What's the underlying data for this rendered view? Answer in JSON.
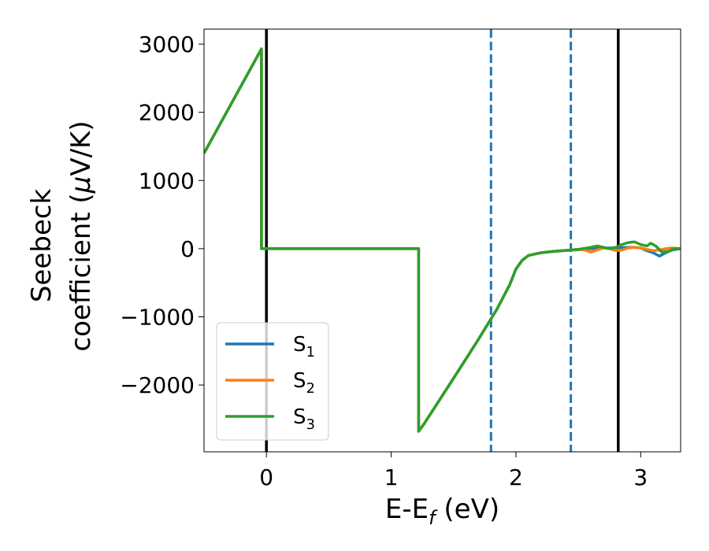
{
  "chart_data": {
    "type": "line",
    "xlabel_main": "E-E",
    "xlabel_sub": "f",
    "xlabel_unit": " (eV)",
    "ylabel_line1": "Seebeck",
    "ylabel_line2_text": "coefficient  (",
    "ylabel_mu": "μ",
    "ylabel_unit": "V/K)",
    "xlim": [
      -0.5,
      3.32
    ],
    "ylim": [
      -2980,
      3220
    ],
    "xticks": [
      {
        "value": 0,
        "label": "0"
      },
      {
        "value": 1,
        "label": "1"
      },
      {
        "value": 2,
        "label": "2"
      },
      {
        "value": 3,
        "label": "3"
      }
    ],
    "yticks": [
      {
        "value": 3000,
        "label": "3000"
      },
      {
        "value": 2000,
        "label": "2000"
      },
      {
        "value": 1000,
        "label": "1000"
      },
      {
        "value": 0,
        "label": "0"
      },
      {
        "value": -1000,
        "label": "−1000"
      },
      {
        "value": -2000,
        "label": "−2000"
      }
    ],
    "vlines": [
      {
        "x": 0.0,
        "style": "solid",
        "color": "#000000"
      },
      {
        "x": 2.82,
        "style": "solid",
        "color": "#000000"
      },
      {
        "x": 1.8,
        "style": "dashed",
        "color": "#1f77b4"
      },
      {
        "x": 2.44,
        "style": "dashed",
        "color": "#1f77b4"
      }
    ],
    "legend_position": "lower-left",
    "series": [
      {
        "name": "S",
        "sub": "1",
        "color": "#1f77b4",
        "x": [
          -0.5,
          -0.04,
          -0.04,
          1.22,
          1.22,
          1.26,
          1.5,
          1.7,
          1.85,
          1.95,
          2.0,
          2.05,
          2.1,
          2.2,
          2.3,
          2.4,
          2.5,
          2.6,
          2.7,
          2.8,
          2.85,
          2.9,
          2.95,
          3.0,
          3.05,
          3.1,
          3.15,
          3.2,
          3.25,
          3.32
        ],
        "y": [
          1400,
          2930,
          0,
          0,
          -2680,
          -2580,
          -1900,
          -1330,
          -880,
          -530,
          -300,
          -170,
          -100,
          -60,
          -40,
          -25,
          -15,
          0,
          10,
          10,
          15,
          20,
          20,
          10,
          -30,
          -60,
          -110,
          -60,
          -20,
          0
        ]
      },
      {
        "name": "S",
        "sub": "2",
        "color": "#ff7f0e",
        "x": [
          -0.5,
          -0.04,
          -0.04,
          1.22,
          1.22,
          1.26,
          1.5,
          1.7,
          1.85,
          1.95,
          2.0,
          2.05,
          2.1,
          2.2,
          2.3,
          2.4,
          2.5,
          2.55,
          2.6,
          2.65,
          2.7,
          2.75,
          2.8,
          2.85,
          2.9,
          2.95,
          3.0,
          3.05,
          3.1,
          3.15,
          3.2,
          3.25,
          3.32
        ],
        "y": [
          1400,
          2930,
          0,
          0,
          -2680,
          -2580,
          -1900,
          -1330,
          -880,
          -530,
          -300,
          -170,
          -100,
          -60,
          -40,
          -25,
          -10,
          -20,
          -50,
          -20,
          10,
          0,
          -30,
          -20,
          10,
          20,
          10,
          -10,
          -30,
          -20,
          0,
          10,
          0
        ]
      },
      {
        "name": "S",
        "sub": "3",
        "color": "#2ca02c",
        "x": [
          -0.5,
          -0.04,
          -0.04,
          1.22,
          1.22,
          1.26,
          1.5,
          1.7,
          1.85,
          1.95,
          2.0,
          2.05,
          2.1,
          2.2,
          2.3,
          2.4,
          2.5,
          2.6,
          2.65,
          2.7,
          2.75,
          2.8,
          2.85,
          2.9,
          2.95,
          3.0,
          3.05,
          3.08,
          3.12,
          3.17,
          3.22,
          3.27,
          3.32
        ],
        "y": [
          1400,
          2930,
          0,
          0,
          -2680,
          -2580,
          -1900,
          -1330,
          -880,
          -530,
          -300,
          -170,
          -100,
          -60,
          -40,
          -25,
          -10,
          20,
          40,
          20,
          0,
          20,
          60,
          90,
          100,
          60,
          40,
          80,
          40,
          -50,
          -40,
          0,
          0
        ]
      }
    ]
  }
}
